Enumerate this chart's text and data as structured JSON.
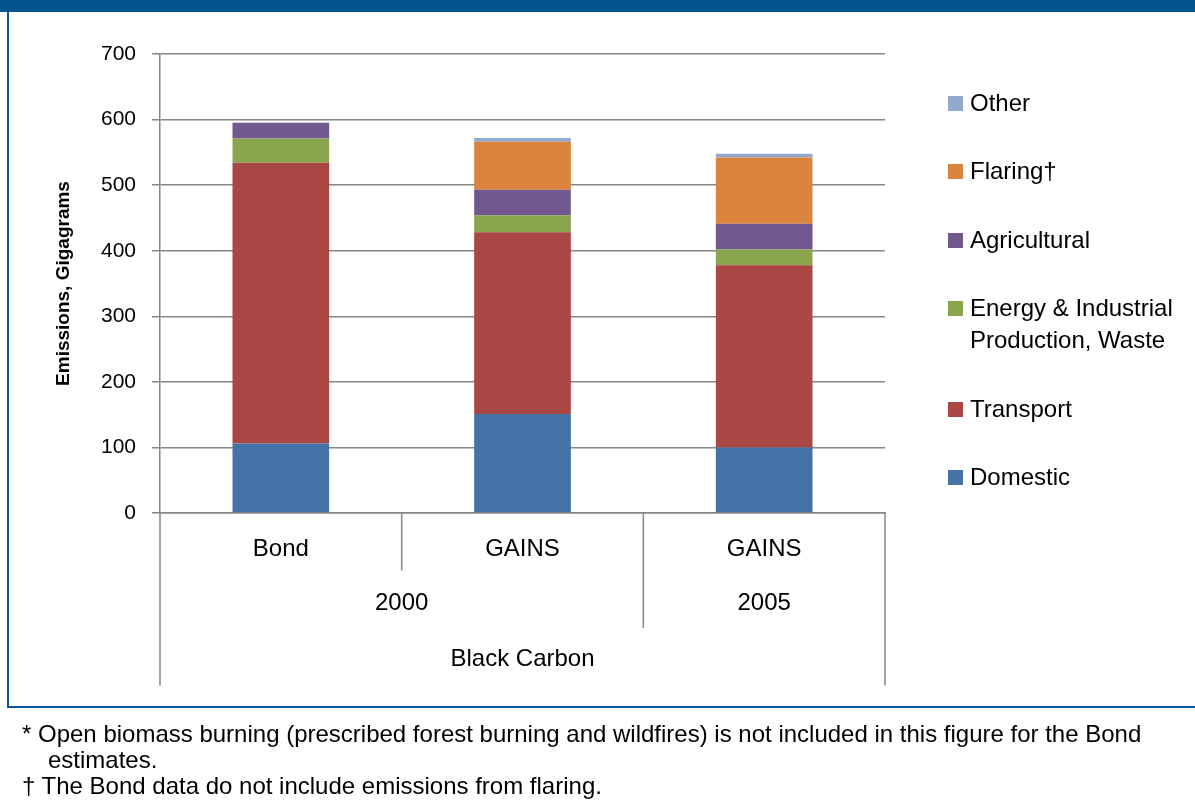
{
  "chart_data": {
    "type": "bar",
    "stacked": true,
    "categories": [
      "Bond",
      "GAINS",
      "GAINS"
    ],
    "series": [
      {
        "name": "Domestic",
        "color": "#4572a7",
        "values": [
          106,
          151,
          100
        ]
      },
      {
        "name": "Transport",
        "color": "#aa4643",
        "values": [
          428,
          277,
          278
        ]
      },
      {
        "name": "Energy & Industrial Production, Waste",
        "color": "#89a54e",
        "values": [
          37,
          26,
          24
        ]
      },
      {
        "name": "Agricultural",
        "color": "#71588f",
        "values": [
          24,
          39,
          39
        ]
      },
      {
        "name": "Flaring†",
        "color": "#db843d",
        "values": [
          null,
          73,
          101
        ]
      },
      {
        "name": "Other",
        "color": "#93a9cf",
        "values": [
          null,
          6,
          6
        ]
      }
    ],
    "ylabel": "Emissions, Gigagrams",
    "xlabel": "Black Carbon",
    "ylim": [
      0,
      700
    ],
    "yticks": [
      0,
      100,
      200,
      300,
      400,
      500,
      600,
      700
    ],
    "grid": "y",
    "legend": "right",
    "annotations": [
      "2000",
      "2005",
      "* Open biomass burning (prescribed forest burning and wildfires) is not included in this figure for the Bond estimates.",
      "† The Bond data do not include emissions from flaring."
    ]
  }
}
